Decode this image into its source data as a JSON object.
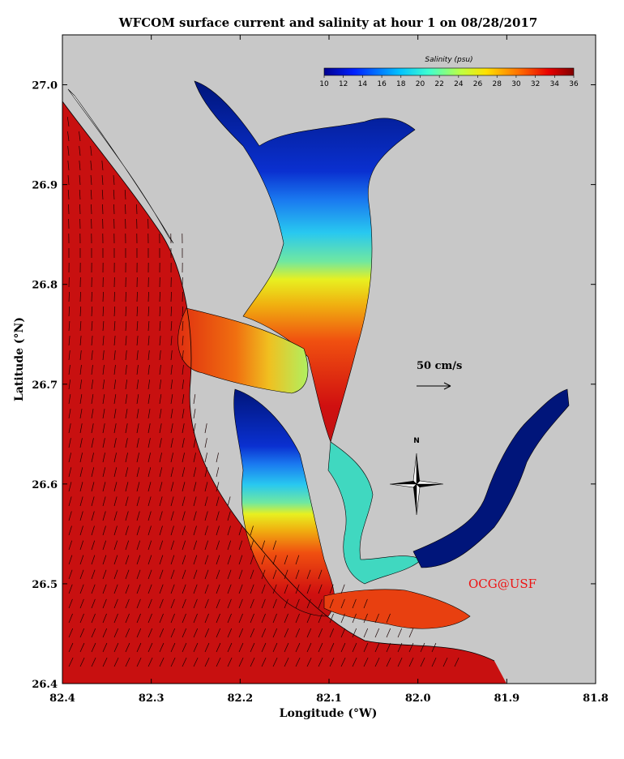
{
  "title": "WFCOM surface current and salinity at hour 1 on 08/28/2017",
  "credit": {
    "text": "OCG@USF",
    "color": "#ee1111"
  },
  "compass_label": "N",
  "scale_arrow": {
    "label": "50 cm/s",
    "value_cm_s": 50
  },
  "colors": {
    "land": "#c8c8c8",
    "water_high": "#c81010",
    "coast": "#000000"
  },
  "chart_data": {
    "type": "map",
    "xlabel": "Longitude (°W)",
    "ylabel": "Latitude (°N)",
    "xlim": [
      82.4,
      81.8
    ],
    "ylim": [
      26.4,
      27.05
    ],
    "x_ticks": [
      "82.4",
      "82.3",
      "82.2",
      "82.1",
      "82.0",
      "81.9",
      "81.8"
    ],
    "y_ticks": [
      "26.4",
      "26.5",
      "26.6",
      "26.7",
      "26.8",
      "26.9",
      "27.0"
    ],
    "colorbar": {
      "title": "Salinity (psu)",
      "range": [
        10,
        36
      ],
      "ticks": [
        "10",
        "12",
        "14",
        "16",
        "18",
        "20",
        "22",
        "24",
        "26",
        "28",
        "30",
        "32",
        "34",
        "36"
      ]
    }
  }
}
